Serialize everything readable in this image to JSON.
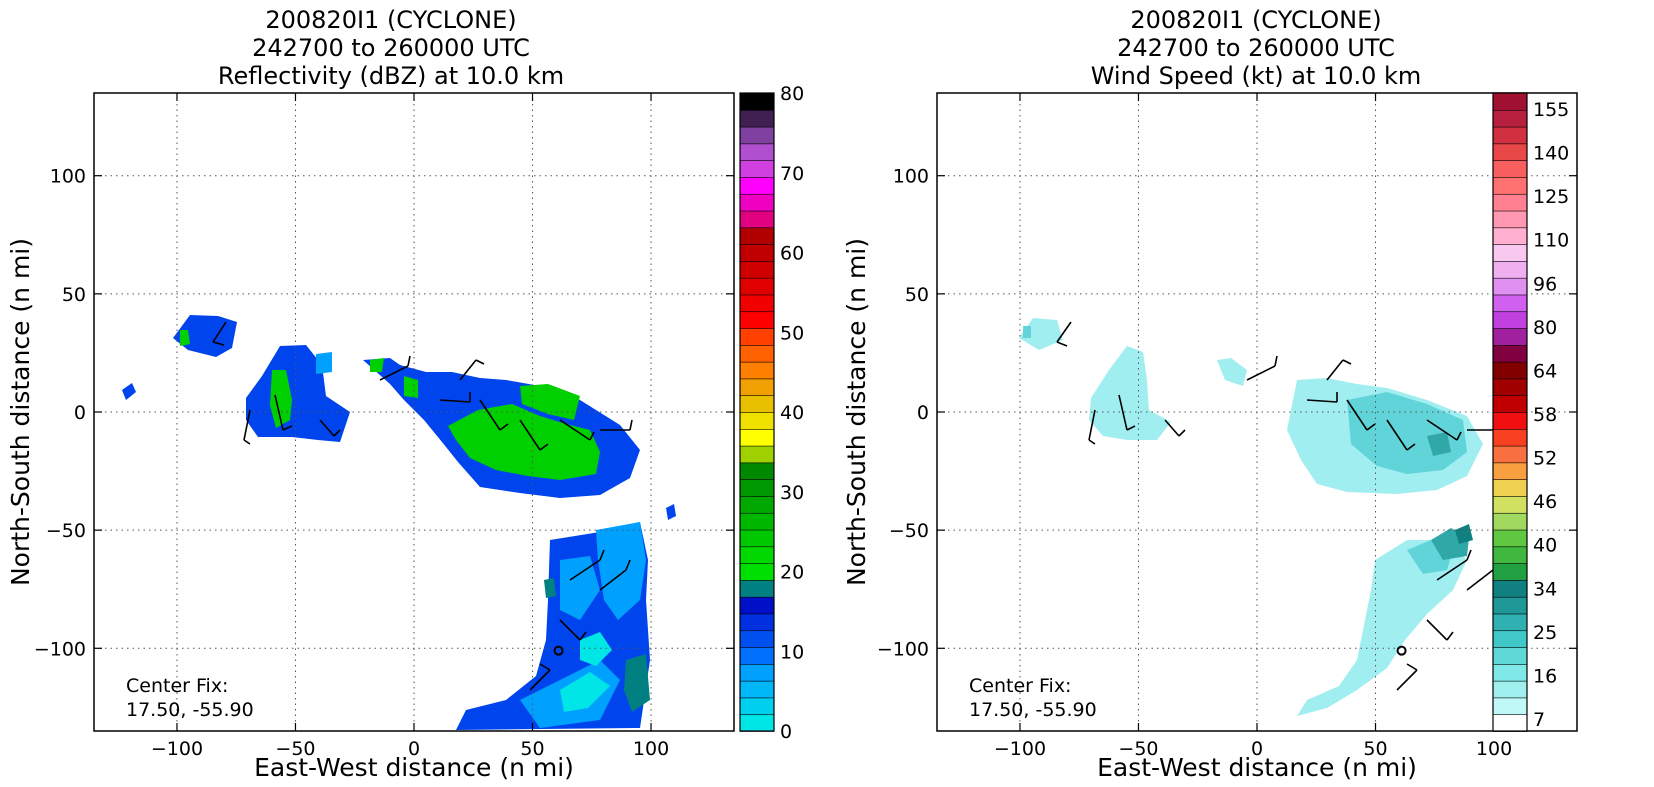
{
  "panels": [
    {
      "title_lines": [
        "200820I1 (CYCLONE)",
        "242700 to 260000 UTC",
        "Reflectivity (dBZ) at 10.0 km"
      ],
      "xlabel": "East-West distance (n mi)",
      "ylabel": "North-South distance (n mi)",
      "center_fix_label": "Center Fix:",
      "center_fix_value": "17.50, -55.90",
      "colorbar": {
        "min": 0,
        "max": 80,
        "tick_labels": [
          "0",
          "10",
          "20",
          "30",
          "40",
          "50",
          "60",
          "70",
          "80"
        ],
        "colors": [
          "#00e5e5",
          "#00d0f0",
          "#00b8f8",
          "#00a0ff",
          "#0070ff",
          "#0050f0",
          "#0030e0",
          "#0010c8",
          "#008080",
          "#00e000",
          "#00d800",
          "#00c800",
          "#00b800",
          "#00a800",
          "#009800",
          "#008800",
          "#a0d000",
          "#ffff00",
          "#f0e000",
          "#e8c000",
          "#f0a000",
          "#ff8000",
          "#ff6000",
          "#ff4000",
          "#ff0000",
          "#f00000",
          "#e00000",
          "#d00000",
          "#c00000",
          "#b00000",
          "#e00080",
          "#f000c0",
          "#ff00ff",
          "#d040e0",
          "#b050d0",
          "#8040a0",
          "#402050",
          "#000000"
        ]
      }
    },
    {
      "title_lines": [
        "200820I1 (CYCLONE)",
        "242700 to 260000 UTC",
        "Wind Speed (kt) at 10.0 km"
      ],
      "xlabel": "East-West distance (n mi)",
      "ylabel": "North-South distance (n mi)",
      "center_fix_label": "Center Fix:",
      "center_fix_value": "17.50, -55.90",
      "colorbar": {
        "tick_labels": [
          "7",
          "16",
          "25",
          "34",
          "40",
          "46",
          "52",
          "58",
          "64",
          "80",
          "96",
          "110",
          "125",
          "140",
          "155"
        ],
        "colors": [
          "#ffffff",
          "#c0f8f8",
          "#a0f0f0",
          "#80e8e8",
          "#60d8d8",
          "#40c8c8",
          "#30b0b0",
          "#209898",
          "#108080",
          "#20a040",
          "#40b840",
          "#60c840",
          "#a0d860",
          "#d0e060",
          "#f0d050",
          "#f8a040",
          "#f87040",
          "#f84020",
          "#f01010",
          "#c00000",
          "#a00000",
          "#800000",
          "#800040",
          "#a020a0",
          "#c040e0",
          "#d060f0",
          "#e090f0",
          "#f0b0f0",
          "#f8c8f0",
          "#ffb0d0",
          "#ff98b0",
          "#ff8090",
          "#ff7070",
          "#f86060",
          "#e84848",
          "#d03040",
          "#b82040",
          "#a01030"
        ]
      }
    }
  ],
  "chart_data": [
    {
      "type": "heatmap",
      "title": "200820I1 (CYCLONE) 242700 to 260000 UTC Reflectivity (dBZ) at 10.0 km",
      "xlabel": "East-West distance (n mi)",
      "ylabel": "North-South distance (n mi)",
      "xlim": [
        -135,
        135
      ],
      "ylim": [
        -135,
        135
      ],
      "x_ticks": [
        -100,
        -50,
        0,
        50,
        100
      ],
      "y_ticks": [
        -100,
        -50,
        0,
        50,
        100
      ],
      "grid": true,
      "colorbar_range": [
        0,
        80
      ],
      "colorbar_ticks": [
        0,
        10,
        20,
        30,
        40,
        50,
        60,
        70,
        80
      ],
      "center_fix": [
        17.5,
        -55.9
      ],
      "center_marker": [
        61,
        -101
      ]
    },
    {
      "type": "heatmap",
      "title": "200820I1 (CYCLONE) 242700 to 260000 UTC Wind Speed (kt) at 10.0 km",
      "xlabel": "East-West distance (n mi)",
      "ylabel": "North-South distance (n mi)",
      "xlim": [
        -135,
        135
      ],
      "ylim": [
        -135,
        135
      ],
      "x_ticks": [
        -100,
        -50,
        0,
        50,
        100
      ],
      "y_ticks": [
        -100,
        -50,
        0,
        50,
        100
      ],
      "grid": true,
      "colorbar_ticks": [
        7,
        16,
        25,
        34,
        40,
        46,
        52,
        58,
        64,
        80,
        96,
        110,
        125,
        140,
        155
      ],
      "center_fix": [
        17.5,
        -55.9
      ],
      "center_marker": [
        61,
        -101
      ]
    }
  ]
}
